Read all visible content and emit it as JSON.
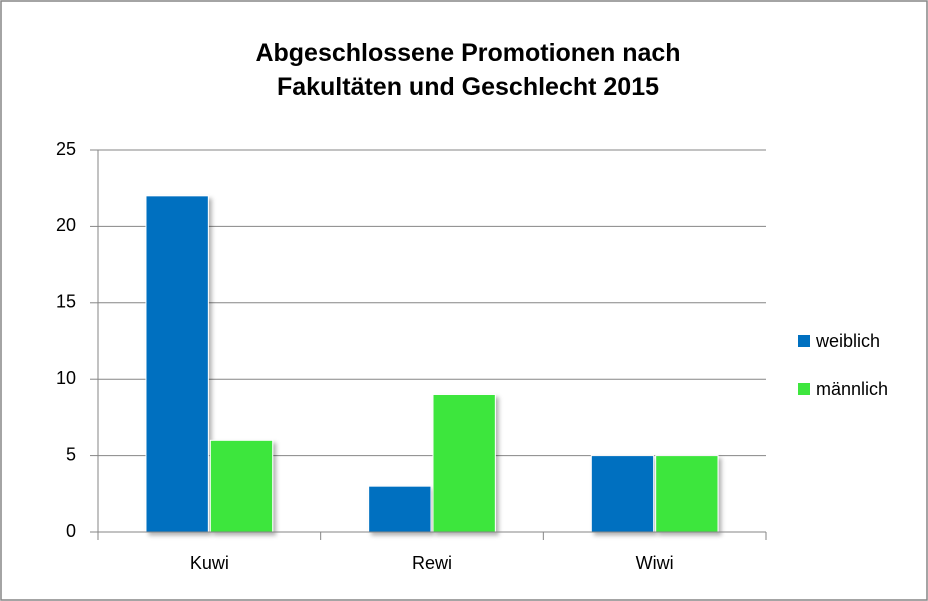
{
  "chart_data": {
    "type": "bar",
    "title": "Abgeschlossene Promotionen nach Fakultäten und Geschlecht 2015",
    "categories": [
      "Kuwi",
      "Rewi",
      "Wiwi"
    ],
    "series": [
      {
        "name": "weiblich",
        "color": "#0070c0",
        "values": [
          22,
          3,
          5
        ]
      },
      {
        "name": "männlich",
        "color": "#3ee63e",
        "values": [
          6,
          9,
          5
        ]
      }
    ],
    "ylim": [
      0,
      25
    ],
    "yticks": [
      0,
      5,
      10,
      15,
      20,
      25
    ],
    "grid": true,
    "legend": "right"
  }
}
